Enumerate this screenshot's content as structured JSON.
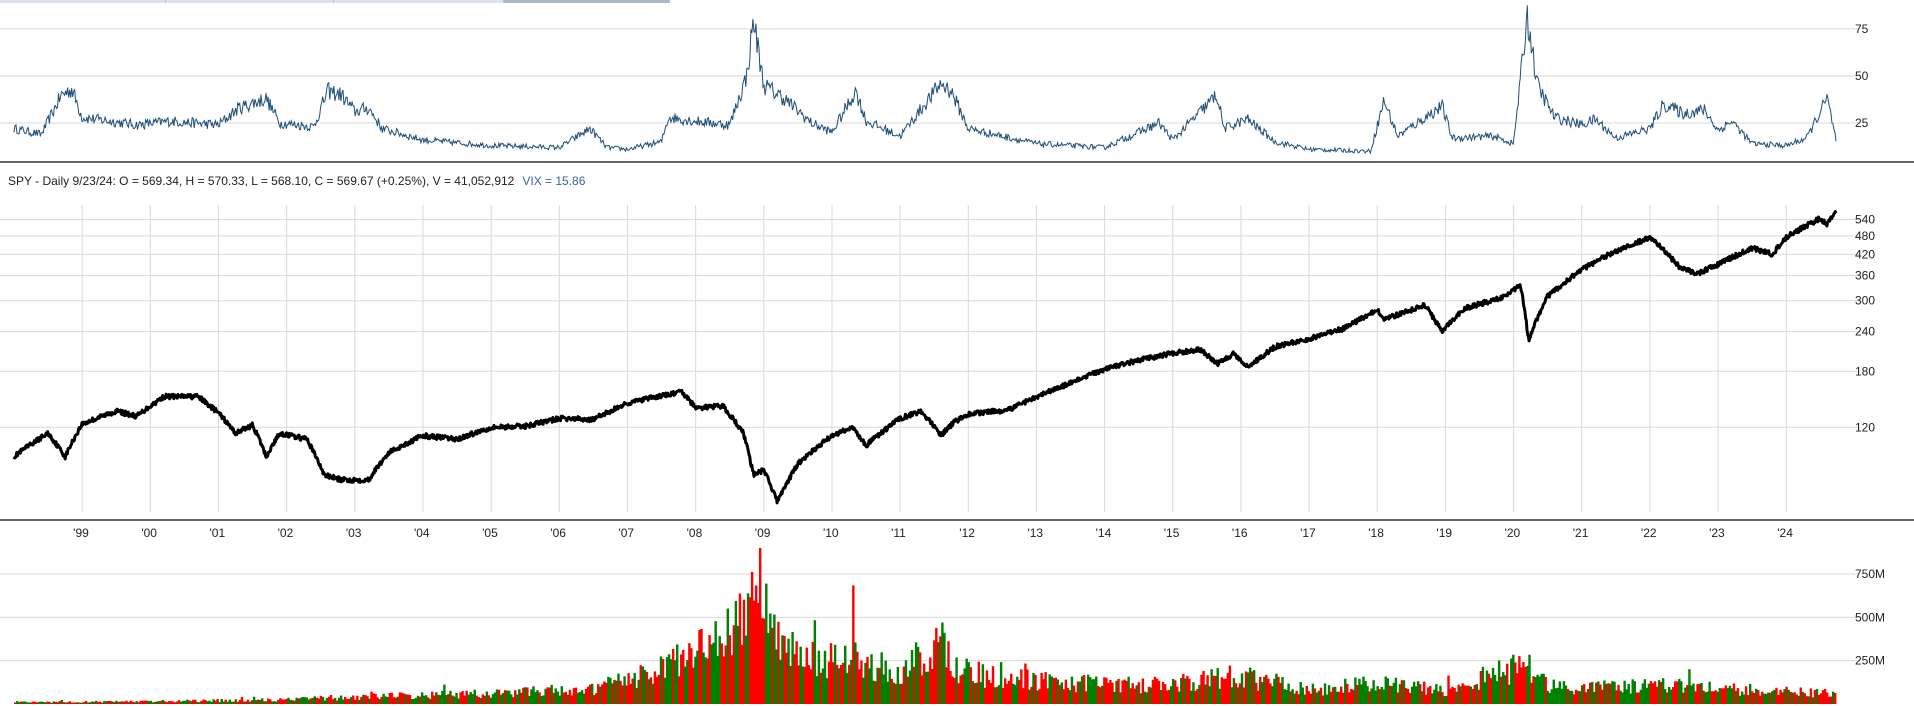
{
  "tabs": [
    {
      "label": ""
    },
    {
      "label": ""
    },
    {
      "label": ""
    },
    {
      "label": "",
      "active": true
    }
  ],
  "info": {
    "symbol_line": "SPY - Daily 9/23/24:  O = 569.34,  H = 570.33,  L = 568.10,  C = 569.67 (+0.25%),  V = 41,052,912",
    "vix_line": "VIX = 15.86"
  },
  "colors": {
    "vix": "#1f4e79",
    "price": "#000000",
    "volume_up": "#008000",
    "volume_down": "#ff0000",
    "grid": "#d9d9d9",
    "separator": "#333333"
  },
  "chart_data": [
    {
      "name": "vix-panel",
      "type": "line",
      "series": [
        {
          "values": "daily VIX close 1998-2024"
        }
      ],
      "y_ticks": [
        25,
        50,
        75
      ],
      "y_tick_labels": [
        "25",
        "50",
        "75"
      ],
      "ylim": [
        8,
        85
      ],
      "x_range": [
        1998.0,
        2024.73
      ],
      "keypoints": [
        [
          1998.0,
          22
        ],
        [
          1998.4,
          19
        ],
        [
          1998.7,
          40
        ],
        [
          1998.85,
          43
        ],
        [
          1999.0,
          28
        ],
        [
          1999.8,
          24
        ],
        [
          2000.3,
          26
        ],
        [
          2001.0,
          24
        ],
        [
          2001.3,
          33
        ],
        [
          2001.7,
          38
        ],
        [
          2001.9,
          25
        ],
        [
          2002.4,
          23
        ],
        [
          2002.6,
          42
        ],
        [
          2002.8,
          40
        ],
        [
          2003.0,
          31
        ],
        [
          2003.2,
          33
        ],
        [
          2003.4,
          22
        ],
        [
          2004.0,
          16
        ],
        [
          2005.0,
          13
        ],
        [
          2006.0,
          12
        ],
        [
          2006.45,
          22
        ],
        [
          2006.7,
          12
        ],
        [
          2007.0,
          11
        ],
        [
          2007.5,
          15
        ],
        [
          2007.6,
          28
        ],
        [
          2008.0,
          26
        ],
        [
          2008.5,
          24
        ],
        [
          2008.75,
          50
        ],
        [
          2008.85,
          80
        ],
        [
          2009.0,
          45
        ],
        [
          2009.3,
          38
        ],
        [
          2009.7,
          25
        ],
        [
          2010.0,
          20
        ],
        [
          2010.35,
          42
        ],
        [
          2010.5,
          26
        ],
        [
          2011.0,
          18
        ],
        [
          2011.6,
          46
        ],
        [
          2011.75,
          42
        ],
        [
          2012.0,
          22
        ],
        [
          2012.5,
          18
        ],
        [
          2013.0,
          14
        ],
        [
          2014.0,
          12
        ],
        [
          2014.8,
          25
        ],
        [
          2015.0,
          16
        ],
        [
          2015.65,
          40
        ],
        [
          2015.75,
          22
        ],
        [
          2016.1,
          27
        ],
        [
          2016.5,
          15
        ],
        [
          2017.0,
          11
        ],
        [
          2017.9,
          10
        ],
        [
          2018.1,
          37
        ],
        [
          2018.3,
          18
        ],
        [
          2018.95,
          34
        ],
        [
          2019.1,
          17
        ],
        [
          2019.7,
          18
        ],
        [
          2020.0,
          14
        ],
        [
          2020.2,
          82
        ],
        [
          2020.35,
          45
        ],
        [
          2020.6,
          28
        ],
        [
          2021.0,
          24
        ],
        [
          2021.2,
          27
        ],
        [
          2021.5,
          17
        ],
        [
          2022.0,
          22
        ],
        [
          2022.2,
          35
        ],
        [
          2022.5,
          30
        ],
        [
          2022.8,
          32
        ],
        [
          2023.0,
          21
        ],
        [
          2023.2,
          26
        ],
        [
          2023.5,
          14
        ],
        [
          2024.0,
          13
        ],
        [
          2024.3,
          17
        ],
        [
          2024.6,
          38
        ],
        [
          2024.73,
          16
        ]
      ]
    },
    {
      "name": "price-panel",
      "type": "line",
      "scale": "log",
      "series": [
        {
          "values": "daily SPY price 1998-2024"
        }
      ],
      "y_ticks": [
        120,
        180,
        240,
        300,
        360,
        420,
        480,
        540
      ],
      "y_tick_labels": [
        "120",
        "180",
        "240",
        "300",
        "360",
        "420",
        "480",
        "540"
      ],
      "ylim": [
        65,
        600
      ],
      "x_ticks": [
        1999,
        2000,
        2001,
        2002,
        2003,
        2004,
        2005,
        2006,
        2007,
        2008,
        2009,
        2010,
        2011,
        2012,
        2013,
        2014,
        2015,
        2016,
        2017,
        2018,
        2019,
        2020,
        2021,
        2022,
        2023,
        2024
      ],
      "x_tick_labels": [
        "'99",
        "'00",
        "'01",
        "'02",
        "'03",
        "'04",
        "'05",
        "'06",
        "'07",
        "'08",
        "'09",
        "'10",
        "'11",
        "'12",
        "'13",
        "'14",
        "'15",
        "'16",
        "'17",
        "'18",
        "'19",
        "'20",
        "'21",
        "'22",
        "'23",
        "'24"
      ],
      "x_range": [
        1998.0,
        2024.73
      ],
      "keypoints": [
        [
          1998.0,
          97
        ],
        [
          1998.5,
          115
        ],
        [
          1998.75,
          97
        ],
        [
          1999.0,
          123
        ],
        [
          1999.5,
          135
        ],
        [
          1999.8,
          130
        ],
        [
          2000.2,
          150
        ],
        [
          2000.7,
          150
        ],
        [
          2001.0,
          133
        ],
        [
          2001.25,
          115
        ],
        [
          2001.5,
          122
        ],
        [
          2001.7,
          97
        ],
        [
          2001.9,
          115
        ],
        [
          2002.3,
          110
        ],
        [
          2002.55,
          85
        ],
        [
          2002.8,
          82
        ],
        [
          2003.2,
          82
        ],
        [
          2003.5,
          100
        ],
        [
          2004.0,
          113
        ],
        [
          2004.5,
          110
        ],
        [
          2005.0,
          120
        ],
        [
          2005.5,
          121
        ],
        [
          2006.0,
          128
        ],
        [
          2006.5,
          127
        ],
        [
          2007.0,
          143
        ],
        [
          2007.45,
          150
        ],
        [
          2007.8,
          155
        ],
        [
          2008.0,
          138
        ],
        [
          2008.4,
          140
        ],
        [
          2008.7,
          115
        ],
        [
          2008.85,
          85
        ],
        [
          2009.0,
          88
        ],
        [
          2009.2,
          70
        ],
        [
          2009.5,
          92
        ],
        [
          2010.0,
          113
        ],
        [
          2010.3,
          120
        ],
        [
          2010.5,
          105
        ],
        [
          2011.0,
          128
        ],
        [
          2011.3,
          135
        ],
        [
          2011.6,
          113
        ],
        [
          2011.8,
          125
        ],
        [
          2012.0,
          132
        ],
        [
          2012.4,
          135
        ],
        [
          2012.5,
          133
        ],
        [
          2013.0,
          150
        ],
        [
          2013.5,
          165
        ],
        [
          2014.0,
          183
        ],
        [
          2014.5,
          195
        ],
        [
          2015.0,
          205
        ],
        [
          2015.4,
          211
        ],
        [
          2015.65,
          190
        ],
        [
          2015.9,
          205
        ],
        [
          2016.1,
          185
        ],
        [
          2016.5,
          215
        ],
        [
          2017.0,
          228
        ],
        [
          2017.5,
          245
        ],
        [
          2018.0,
          280
        ],
        [
          2018.1,
          262
        ],
        [
          2018.7,
          290
        ],
        [
          2018.95,
          240
        ],
        [
          2019.3,
          285
        ],
        [
          2019.8,
          305
        ],
        [
          2020.1,
          335
        ],
        [
          2020.22,
          225
        ],
        [
          2020.5,
          310
        ],
        [
          2021.0,
          375
        ],
        [
          2021.5,
          430
        ],
        [
          2022.0,
          475
        ],
        [
          2022.45,
          380
        ],
        [
          2022.7,
          365
        ],
        [
          2023.0,
          390
        ],
        [
          2023.5,
          440
        ],
        [
          2023.8,
          420
        ],
        [
          2024.0,
          475
        ],
        [
          2024.5,
          545
        ],
        [
          2024.6,
          520
        ],
        [
          2024.73,
          570
        ]
      ]
    },
    {
      "name": "volume-panel",
      "type": "bar",
      "series": [
        {
          "values": "daily SPY volume 1998-2024"
        }
      ],
      "y_ticks": [
        250000000,
        500000000,
        750000000
      ],
      "y_tick_labels": [
        "250M",
        "500M",
        "750M"
      ],
      "ylim": [
        0,
        900000000
      ],
      "x_range": [
        1998.0,
        2024.73
      ],
      "keypoints": [
        [
          1998.0,
          10
        ],
        [
          2000.0,
          15
        ],
        [
          2002.0,
          25
        ],
        [
          2003.0,
          40
        ],
        [
          2005.0,
          60
        ],
        [
          2006.5,
          90
        ],
        [
          2007.5,
          200
        ],
        [
          2008.0,
          300
        ],
        [
          2008.85,
          560
        ],
        [
          2009.2,
          450
        ],
        [
          2009.8,
          250
        ],
        [
          2010.35,
          330
        ],
        [
          2010.6,
          200
        ],
        [
          2011.0,
          170
        ],
        [
          2011.6,
          380
        ],
        [
          2011.8,
          200
        ],
        [
          2012.5,
          150
        ],
        [
          2013.5,
          120
        ],
        [
          2014.5,
          110
        ],
        [
          2015.5,
          140
        ],
        [
          2016.0,
          150
        ],
        [
          2017.0,
          80
        ],
        [
          2018.0,
          120
        ],
        [
          2019.0,
          80
        ],
        [
          2020.2,
          230
        ],
        [
          2020.5,
          100
        ],
        [
          2021.0,
          90
        ],
        [
          2022.0,
          110
        ],
        [
          2023.0,
          90
        ],
        [
          2024.0,
          70
        ],
        [
          2024.73,
          60
        ]
      ]
    }
  ]
}
